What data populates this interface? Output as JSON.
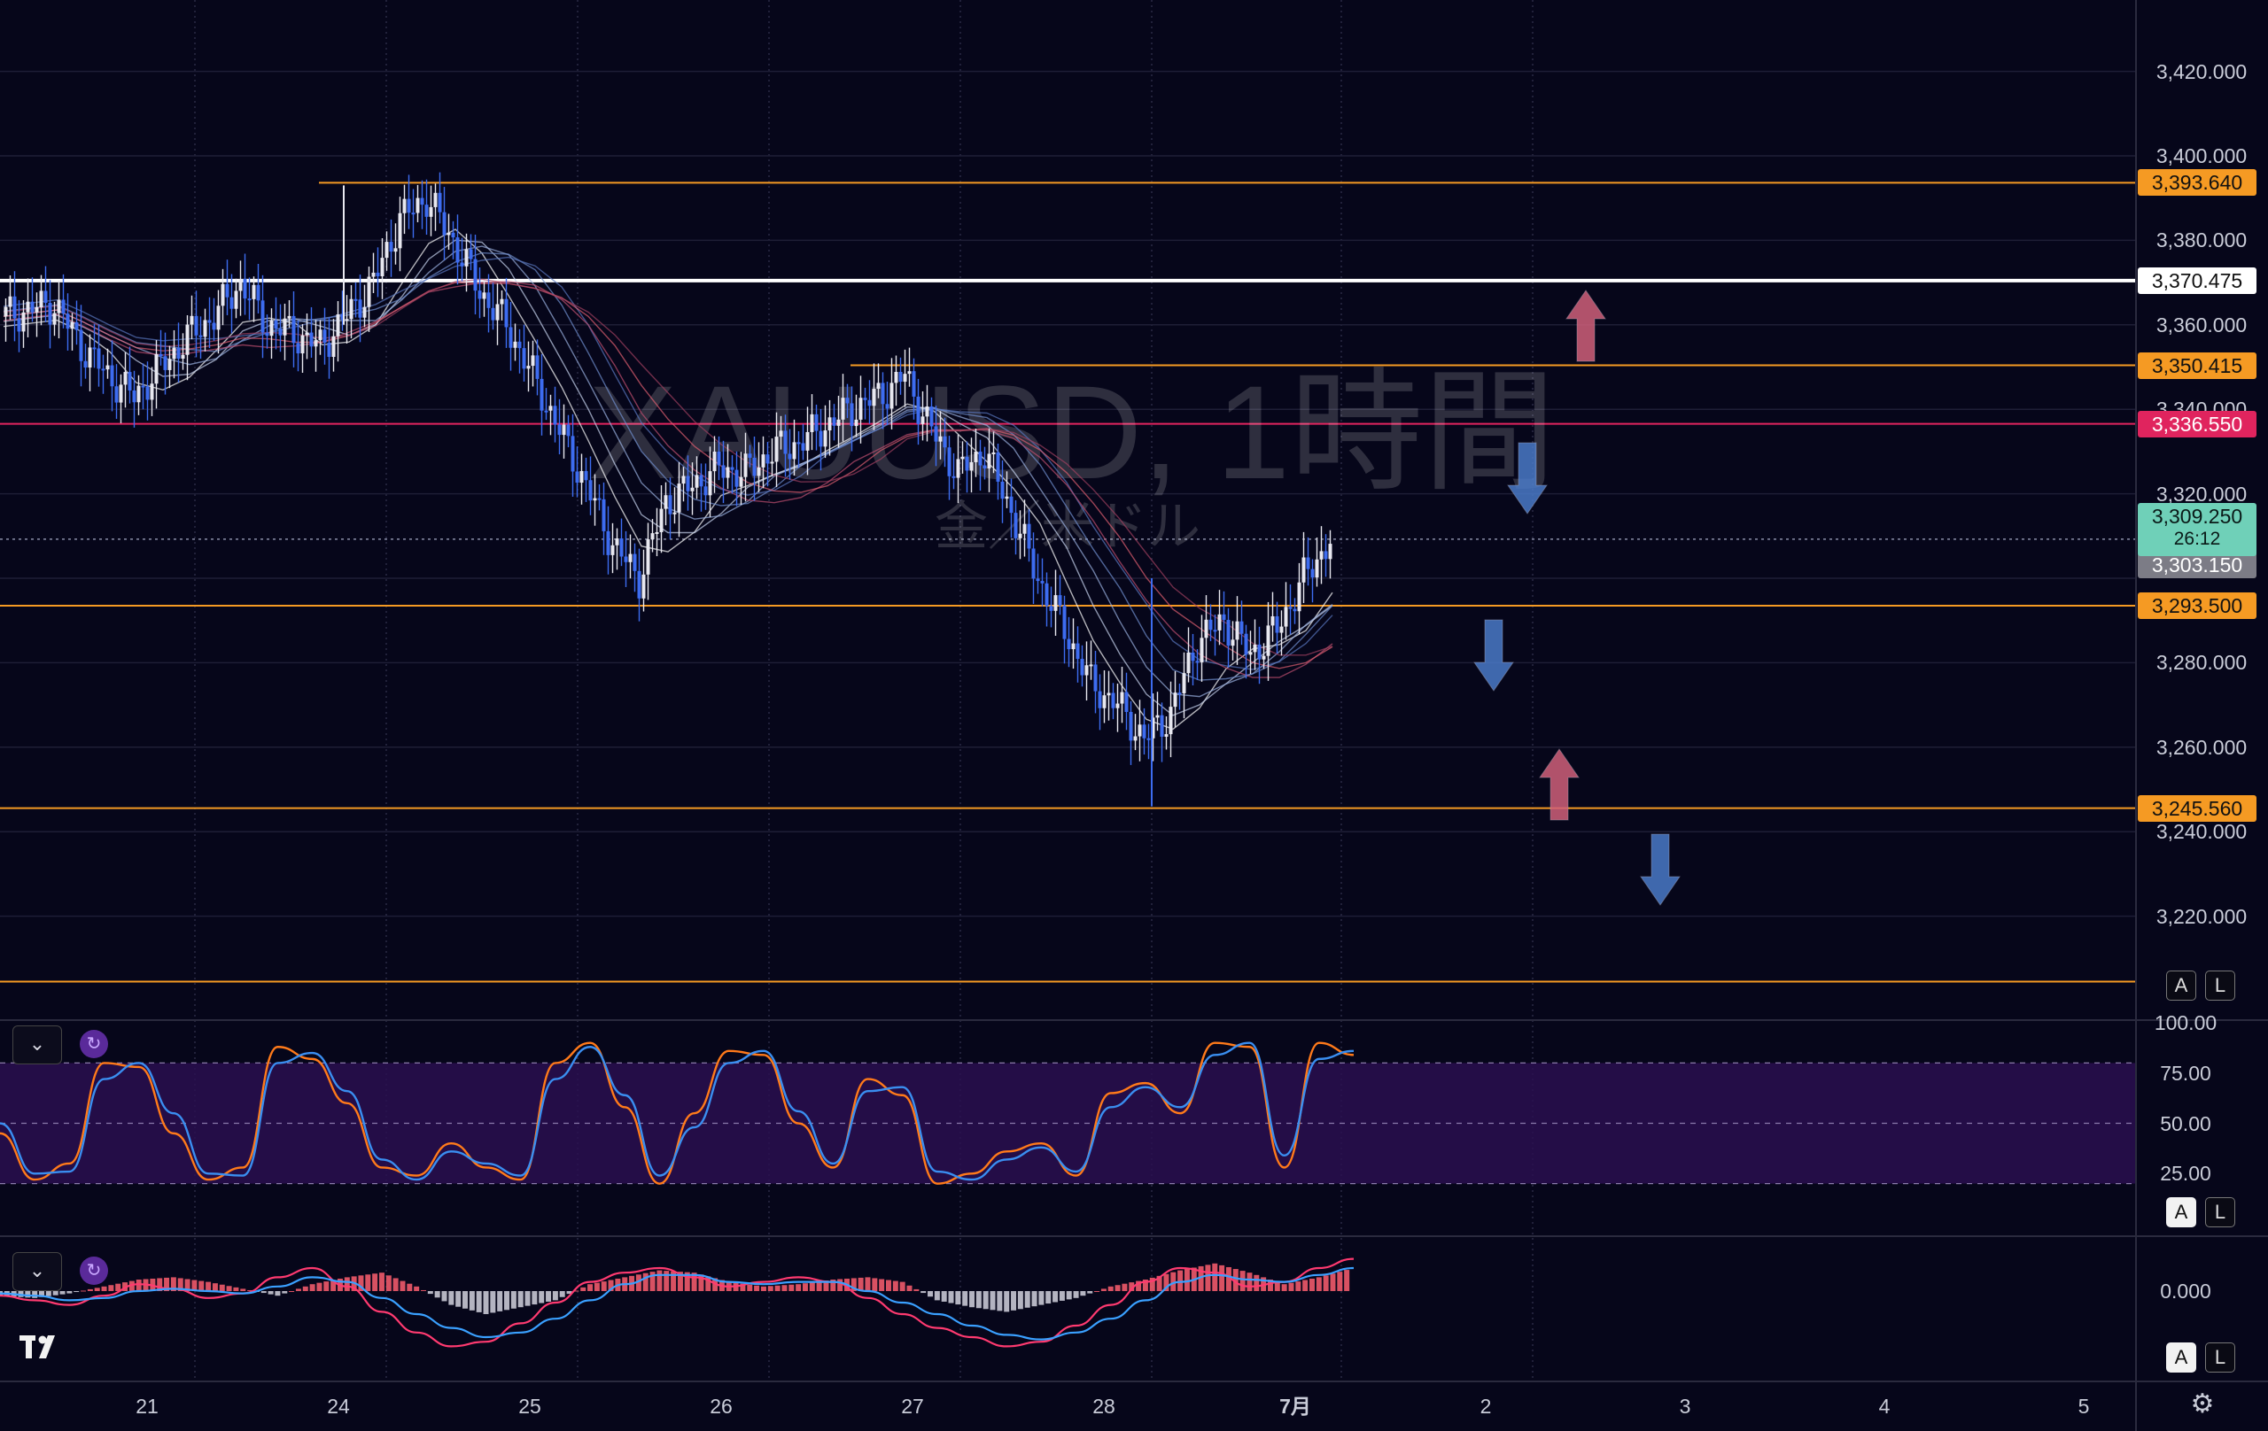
{
  "watermark": {
    "title": "XAUUSD, 1時間",
    "subtitle": "金／米ドル"
  },
  "logo": "TradingView",
  "colors": {
    "background": "#06061a",
    "bull_candle": "#e8e8f0",
    "bear_candle": "#3d6cf0",
    "level_line": "#f59a23",
    "white_line": "#ffffff",
    "pink_line": "#e0245e",
    "current_price_bg": "#6fd0b8",
    "prev_price_bg": "#7c7c86",
    "stoch_k": "#ff7a1a",
    "stoch_d": "#3a8ef0",
    "macd_line": "#ff3a70",
    "signal_line": "#3aa0ff",
    "hist_pos": "#f05a6a",
    "hist_neg": "#c8c8d4",
    "up_arrow": "#d0607a",
    "down_arrow": "#4a7ac8"
  },
  "price_axis": {
    "ticks": [
      "3,420.000",
      "3,400.000",
      "3,380.000",
      "3,360.000",
      "3,340.000",
      "3,320.000",
      "3,280.000",
      "3,260.000",
      "3,240.000",
      "3,220.000"
    ]
  },
  "price_tags": [
    {
      "label": "3,393.640",
      "kind": "level"
    },
    {
      "label": "3,370.475",
      "kind": "white"
    },
    {
      "label": "3,350.415",
      "kind": "level"
    },
    {
      "label": "3,336.550",
      "kind": "pink"
    },
    {
      "label": "3,303.150",
      "kind": "prev"
    },
    {
      "label": "3,293.500",
      "kind": "level"
    },
    {
      "label": "3,245.560",
      "kind": "level"
    }
  ],
  "current_price": {
    "label": "3,309.250",
    "countdown": "26:12"
  },
  "time_axis": {
    "labels": [
      "21",
      "24",
      "25",
      "26",
      "27",
      "28",
      "7月",
      "2",
      "3",
      "4",
      "5"
    ]
  },
  "stoch_axis": {
    "ticks": [
      "100.00",
      "75.00",
      "50.00",
      "25.00"
    ]
  },
  "macd_axis": {
    "ticks": [
      "0.000"
    ]
  },
  "buttons": {
    "auto": "A",
    "log": "L",
    "collapse": "⌄",
    "cycle": "↻",
    "settings": "⚙"
  },
  "chart_data": {
    "type": "candlestick",
    "symbol": "XAUUSD",
    "timeframe": "1時間",
    "ylim": [
      3205,
      3430
    ],
    "x_categories": [
      "21",
      "24",
      "25",
      "26",
      "27",
      "28",
      "7月"
    ],
    "key_levels": [
      3393.64,
      3370.475,
      3350.415,
      3336.55,
      3293.5,
      3245.56,
      3204.5
    ],
    "last_price": 3309.25,
    "close_path": [
      [
        0,
        3362
      ],
      [
        2,
        3365
      ],
      [
        3,
        3355
      ],
      [
        4,
        3348
      ],
      [
        5,
        3343
      ],
      [
        6,
        3350
      ],
      [
        7,
        3357
      ],
      [
        8,
        3362
      ],
      [
        9,
        3370
      ],
      [
        10,
        3360
      ],
      [
        11,
        3358
      ],
      [
        12,
        3355
      ],
      [
        13,
        3362
      ],
      [
        14,
        3370
      ],
      [
        15,
        3385
      ],
      [
        16,
        3390
      ],
      [
        17,
        3380
      ],
      [
        18,
        3368
      ],
      [
        19,
        3360
      ],
      [
        20,
        3348
      ],
      [
        21,
        3335
      ],
      [
        22,
        3322
      ],
      [
        23,
        3308
      ],
      [
        24,
        3300
      ],
      [
        25,
        3318
      ],
      [
        26,
        3322
      ],
      [
        27,
        3326
      ],
      [
        28,
        3325
      ],
      [
        29,
        3330
      ],
      [
        30,
        3332
      ],
      [
        31,
        3336
      ],
      [
        32,
        3340
      ],
      [
        33,
        3343
      ],
      [
        34,
        3348
      ],
      [
        35,
        3335
      ],
      [
        36,
        3325
      ],
      [
        37,
        3330
      ],
      [
        38,
        3316
      ],
      [
        39,
        3300
      ],
      [
        40,
        3288
      ],
      [
        41,
        3275
      ],
      [
        42,
        3270
      ],
      [
        43,
        3262
      ],
      [
        44,
        3268
      ],
      [
        45,
        3285
      ],
      [
        46,
        3290
      ],
      [
        47,
        3282
      ],
      [
        48,
        3288
      ],
      [
        49,
        3300
      ],
      [
        50,
        3309
      ]
    ],
    "stochastic": {
      "name": "Stoch",
      "k": [
        45,
        22,
        30,
        80,
        78,
        45,
        22,
        28,
        88,
        82,
        60,
        28,
        24,
        40,
        28,
        22,
        80,
        90,
        58,
        20,
        55,
        86,
        84,
        50,
        28,
        72,
        64,
        20,
        25,
        36,
        40,
        24,
        65,
        70,
        55,
        90,
        88,
        28,
        90,
        84
      ],
      "d": [
        50,
        25,
        26,
        72,
        80,
        55,
        25,
        24,
        80,
        85,
        66,
        32,
        22,
        36,
        30,
        24,
        72,
        88,
        64,
        24,
        48,
        80,
        86,
        56,
        30,
        66,
        68,
        26,
        22,
        32,
        38,
        26,
        58,
        68,
        58,
        84,
        90,
        34,
        82,
        86
      ]
    },
    "macd": {
      "hist": [
        -2,
        -3,
        -1,
        2,
        5,
        6,
        4,
        1,
        -2,
        3,
        6,
        8,
        2,
        -6,
        -10,
        -7,
        -4,
        3,
        6,
        9,
        8,
        4,
        2,
        3,
        5,
        6,
        4,
        -4,
        -7,
        -9,
        -6,
        -3,
        2,
        5,
        9,
        12,
        8,
        3,
        6,
        10
      ],
      "macd": [
        -2,
        -4,
        -6,
        -2,
        3,
        1,
        -3,
        -1,
        6,
        10,
        2,
        -9,
        -18,
        -24,
        -22,
        -14,
        -5,
        4,
        8,
        10,
        6,
        2,
        4,
        6,
        4,
        -3,
        -10,
        -16,
        -20,
        -24,
        -22,
        -15,
        -6,
        4,
        10,
        8,
        2,
        4,
        10,
        14
      ],
      "signal": [
        -1,
        -2,
        -4,
        -3,
        0,
        1,
        0,
        -1,
        2,
        6,
        4,
        -3,
        -10,
        -16,
        -20,
        -18,
        -12,
        -4,
        3,
        7,
        7,
        4,
        3,
        4,
        4,
        0,
        -5,
        -10,
        -15,
        -19,
        -21,
        -18,
        -12,
        -4,
        4,
        7,
        5,
        4,
        7,
        10
      ]
    }
  }
}
